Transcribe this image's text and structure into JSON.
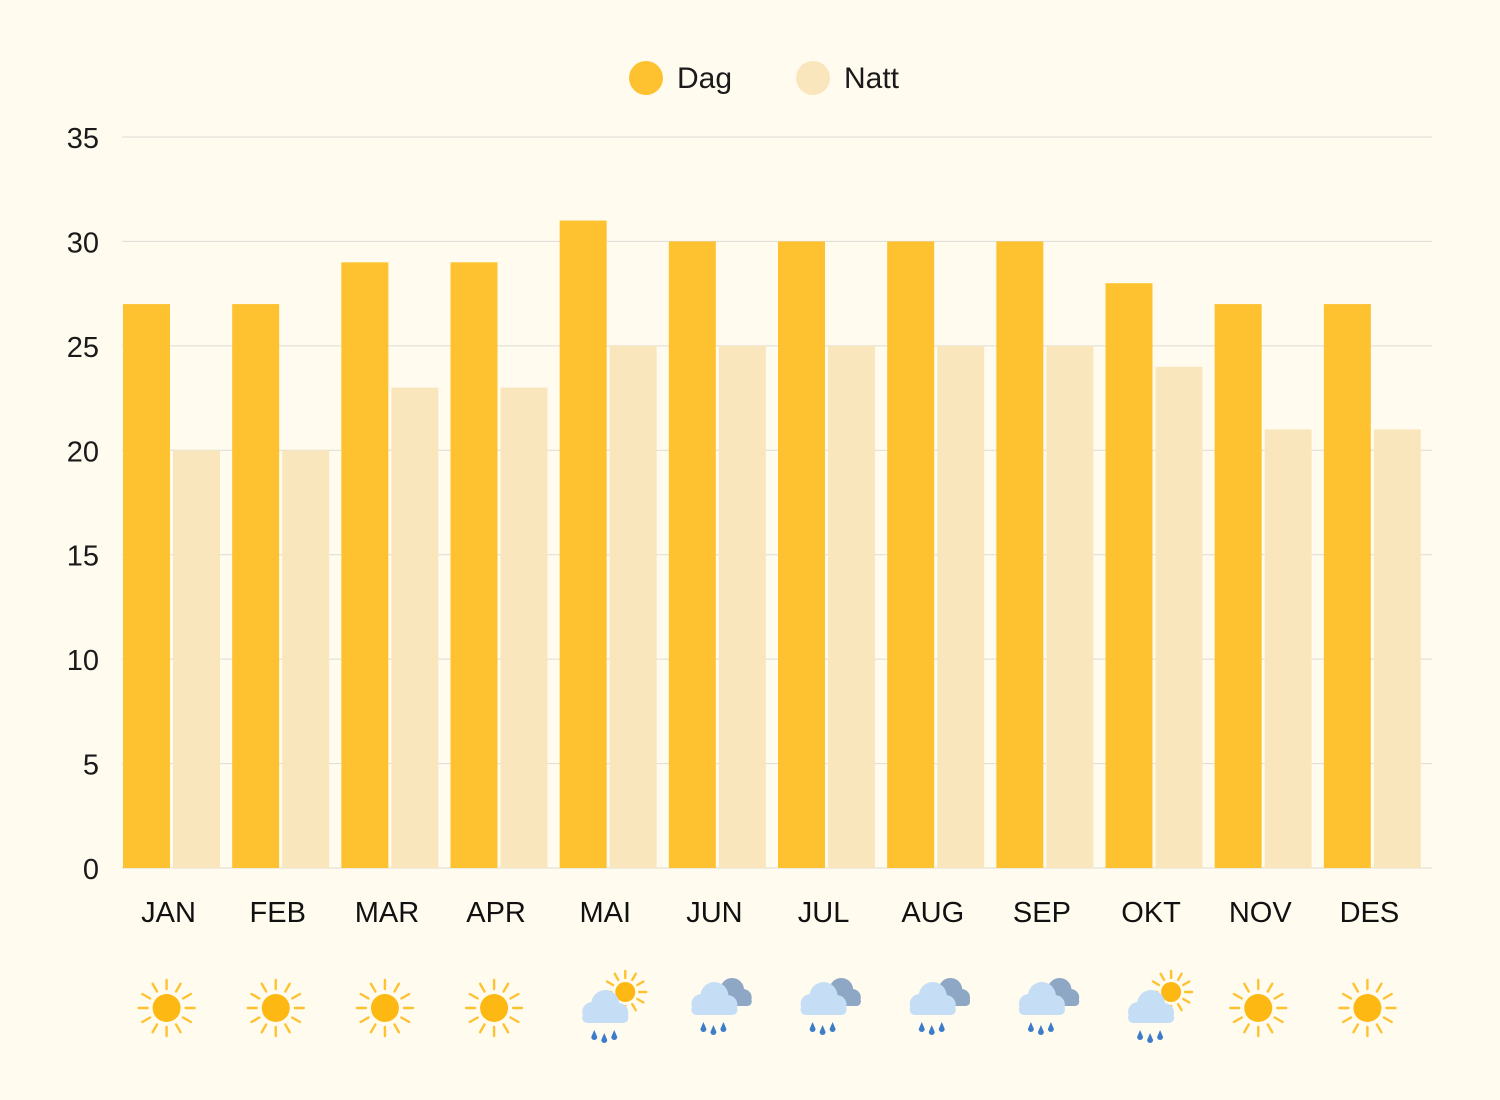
{
  "chart_data": {
    "type": "bar",
    "categories": [
      "JAN",
      "FEB",
      "MAR",
      "APR",
      "MAI",
      "JUN",
      "JUL",
      "AUG",
      "SEP",
      "OKT",
      "NOV",
      "DES"
    ],
    "series": [
      {
        "name": "Dag",
        "color": "#fec231",
        "values": [
          27,
          27,
          29,
          29,
          31,
          30,
          30,
          30,
          30,
          28,
          27,
          27
        ]
      },
      {
        "name": "Natt",
        "color": "#fae6bd",
        "values": [
          20,
          20,
          23,
          23,
          25,
          25,
          25,
          25,
          25,
          24,
          21,
          21
        ]
      }
    ],
    "y_ticks": [
      0,
      5,
      10,
      15,
      20,
      25,
      30,
      35
    ],
    "ylim": [
      0,
      35
    ],
    "grid": true,
    "legend_position": "top-center",
    "weather_icons": [
      "sun-icon",
      "sun-icon",
      "sun-icon",
      "sun-icon",
      "rain-sun-icon",
      "heavy-rain-icon",
      "heavy-rain-icon",
      "heavy-rain-icon",
      "heavy-rain-icon",
      "rain-sun-icon",
      "sun-icon",
      "sun-icon"
    ]
  }
}
